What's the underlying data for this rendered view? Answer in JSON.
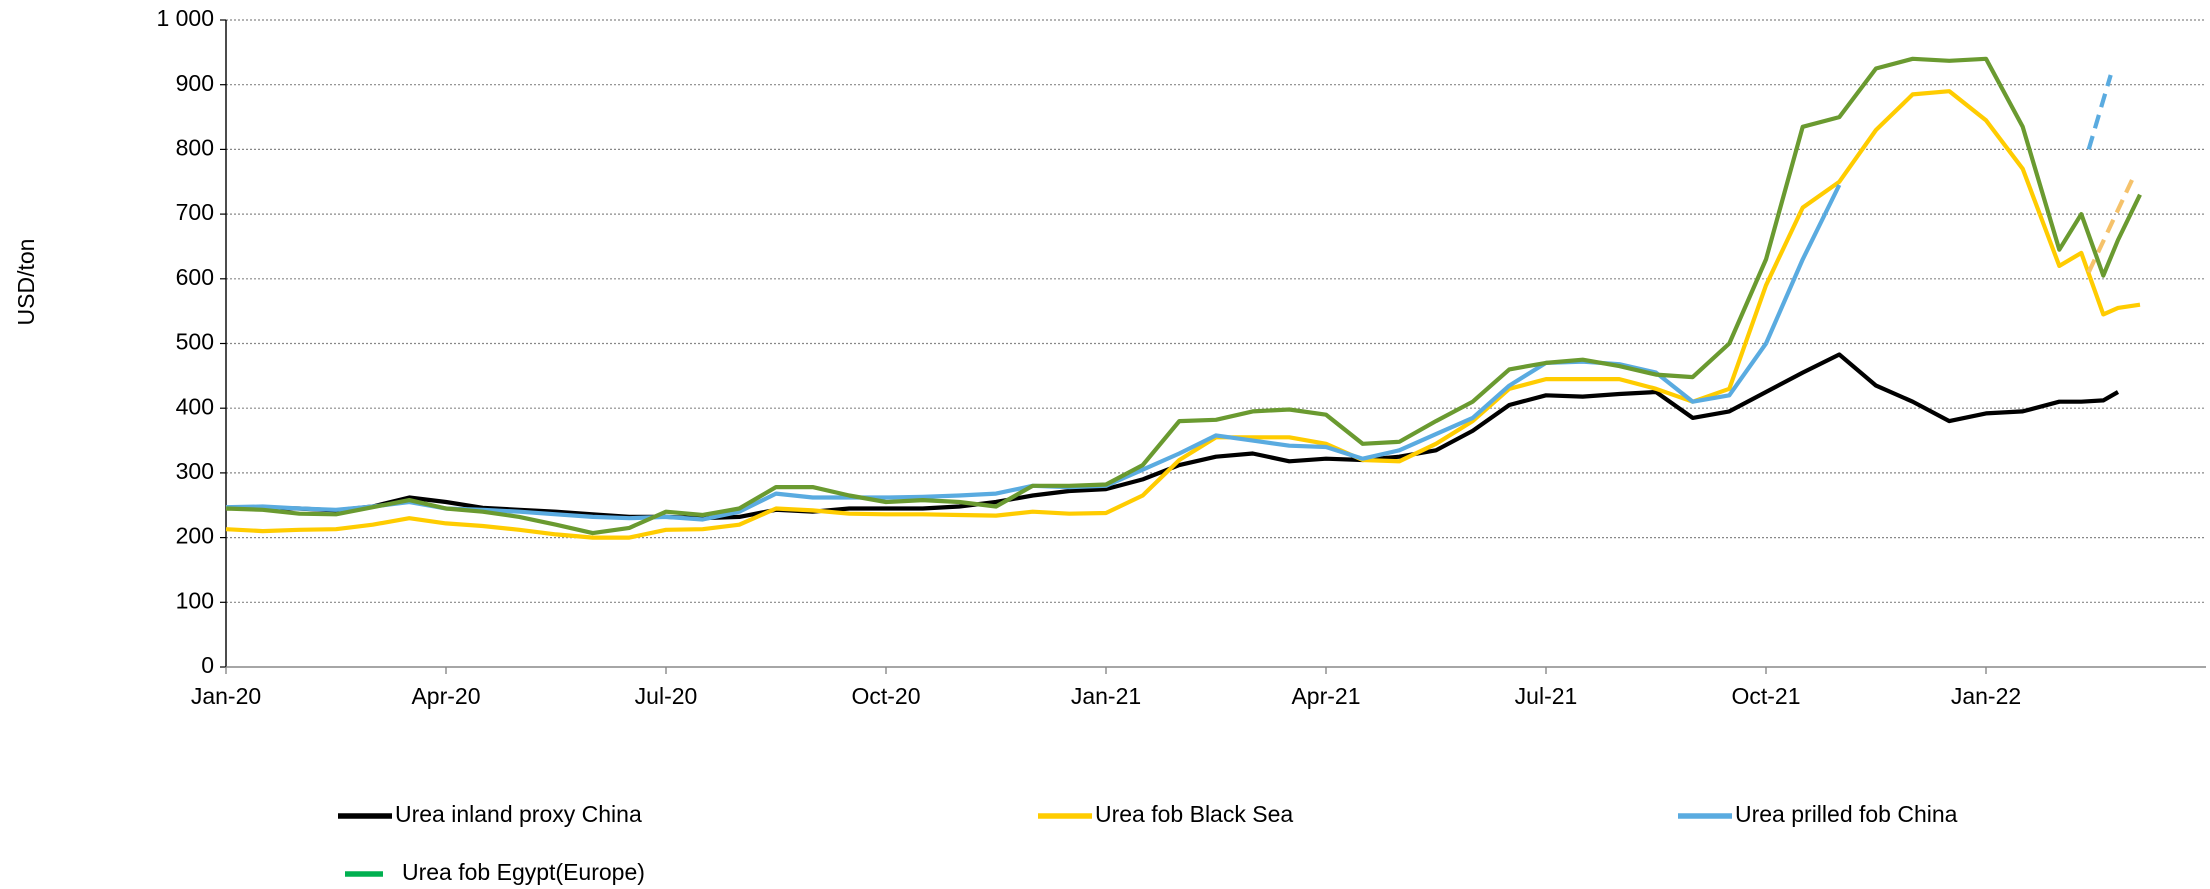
{
  "chart_data": {
    "type": "line",
    "y_label": "USD/ton",
    "x": [
      0,
      0.5,
      1,
      1.5,
      2,
      2.5,
      3,
      3.5,
      4,
      4.5,
      5,
      5.5,
      6,
      6.5,
      7,
      7.5,
      8,
      8.5,
      9,
      9.5,
      10,
      10.5,
      11,
      11.5,
      12,
      12.5,
      13,
      13.5,
      14,
      14.5,
      15,
      15.5,
      16,
      16.5,
      17,
      17.5,
      18,
      18.5,
      19,
      19.5,
      20,
      20.5,
      21,
      21.5,
      22,
      22.5,
      23,
      23.5,
      24,
      24.5,
      25,
      25.3,
      25.6,
      25.8,
      26.1
    ],
    "xlim": [
      0,
      27
    ],
    "xticks": [
      {
        "value": 0,
        "label": "Jan-20"
      },
      {
        "value": 3,
        "label": "Apr-20"
      },
      {
        "value": 6,
        "label": "Jul-20"
      },
      {
        "value": 9,
        "label": "Oct-20"
      },
      {
        "value": 12,
        "label": "Jan-21"
      },
      {
        "value": 15,
        "label": "Apr-21"
      },
      {
        "value": 18,
        "label": "Jul-21"
      },
      {
        "value": 21,
        "label": "Oct-21"
      },
      {
        "value": 24,
        "label": "Jan-22"
      }
    ],
    "ylim": [
      0,
      1000
    ],
    "yticks": [
      0,
      100,
      200,
      300,
      400,
      500,
      600,
      700,
      800,
      900,
      {
        "value": 1000,
        "label": "1 000"
      }
    ],
    "grid": true,
    "legend": "bottom",
    "series": [
      {
        "name": "Urea inland proxy China",
        "color": "#000000",
        "values": [
          245,
          246,
          245,
          242,
          248,
          262,
          255,
          246,
          243,
          240,
          236,
          232,
          232,
          230,
          232,
          243,
          240,
          245,
          245,
          245,
          248,
          255,
          265,
          272,
          275,
          290,
          312,
          325,
          330,
          318,
          322,
          320,
          325,
          335,
          365,
          405,
          420,
          418,
          422,
          425,
          385,
          395,
          425,
          455,
          483,
          435,
          410,
          380,
          392,
          395,
          410,
          410,
          412,
          425,
          null
        ]
      },
      {
        "name": "Urea fob Black Sea",
        "color": "#ffcc00",
        "values": [
          213,
          210,
          212,
          213,
          220,
          230,
          222,
          218,
          212,
          205,
          200,
          200,
          212,
          213,
          220,
          245,
          242,
          237,
          236,
          236,
          235,
          234,
          240,
          237,
          238,
          265,
          320,
          355,
          355,
          355,
          345,
          320,
          318,
          345,
          380,
          430,
          445,
          445,
          445,
          430,
          410,
          430,
          590,
          710,
          750,
          830,
          885,
          890,
          845,
          770,
          620,
          640,
          545,
          555,
          560
        ],
        "projection": {
          "x": [
            25.4,
            26.0
          ],
          "values": [
            610,
            755
          ],
          "color": "#f5c26b"
        }
      },
      {
        "name": "Urea prilled fob China",
        "color": "#5aabe0",
        "values": [
          247,
          248,
          245,
          243,
          248,
          255,
          245,
          243,
          240,
          236,
          232,
          230,
          232,
          228,
          240,
          268,
          262,
          262,
          262,
          263,
          265,
          268,
          280,
          278,
          280,
          305,
          330,
          358,
          350,
          342,
          340,
          322,
          335,
          360,
          385,
          435,
          470,
          472,
          468,
          455,
          410,
          420,
          500,
          630,
          745,
          null,
          null,
          null,
          null,
          null,
          null,
          null,
          null,
          null,
          null
        ],
        "projection": {
          "x": [
            25.4,
            25.7
          ],
          "values": [
            800,
            915
          ],
          "color": "#5aabe0"
        }
      },
      {
        "name": "Urea fob Egypt(Europe)",
        "color": "#6a9a30",
        "legend_color": "#00b050",
        "values": [
          245,
          243,
          237,
          236,
          247,
          258,
          245,
          240,
          232,
          220,
          207,
          215,
          240,
          235,
          245,
          278,
          278,
          265,
          255,
          258,
          255,
          248,
          280,
          280,
          282,
          312,
          380,
          382,
          395,
          398,
          390,
          345,
          348,
          380,
          410,
          460,
          470,
          475,
          465,
          452,
          448,
          500,
          630,
          835,
          850,
          925,
          940,
          937,
          940,
          835,
          645,
          700,
          605,
          660,
          730
        ]
      }
    ]
  }
}
